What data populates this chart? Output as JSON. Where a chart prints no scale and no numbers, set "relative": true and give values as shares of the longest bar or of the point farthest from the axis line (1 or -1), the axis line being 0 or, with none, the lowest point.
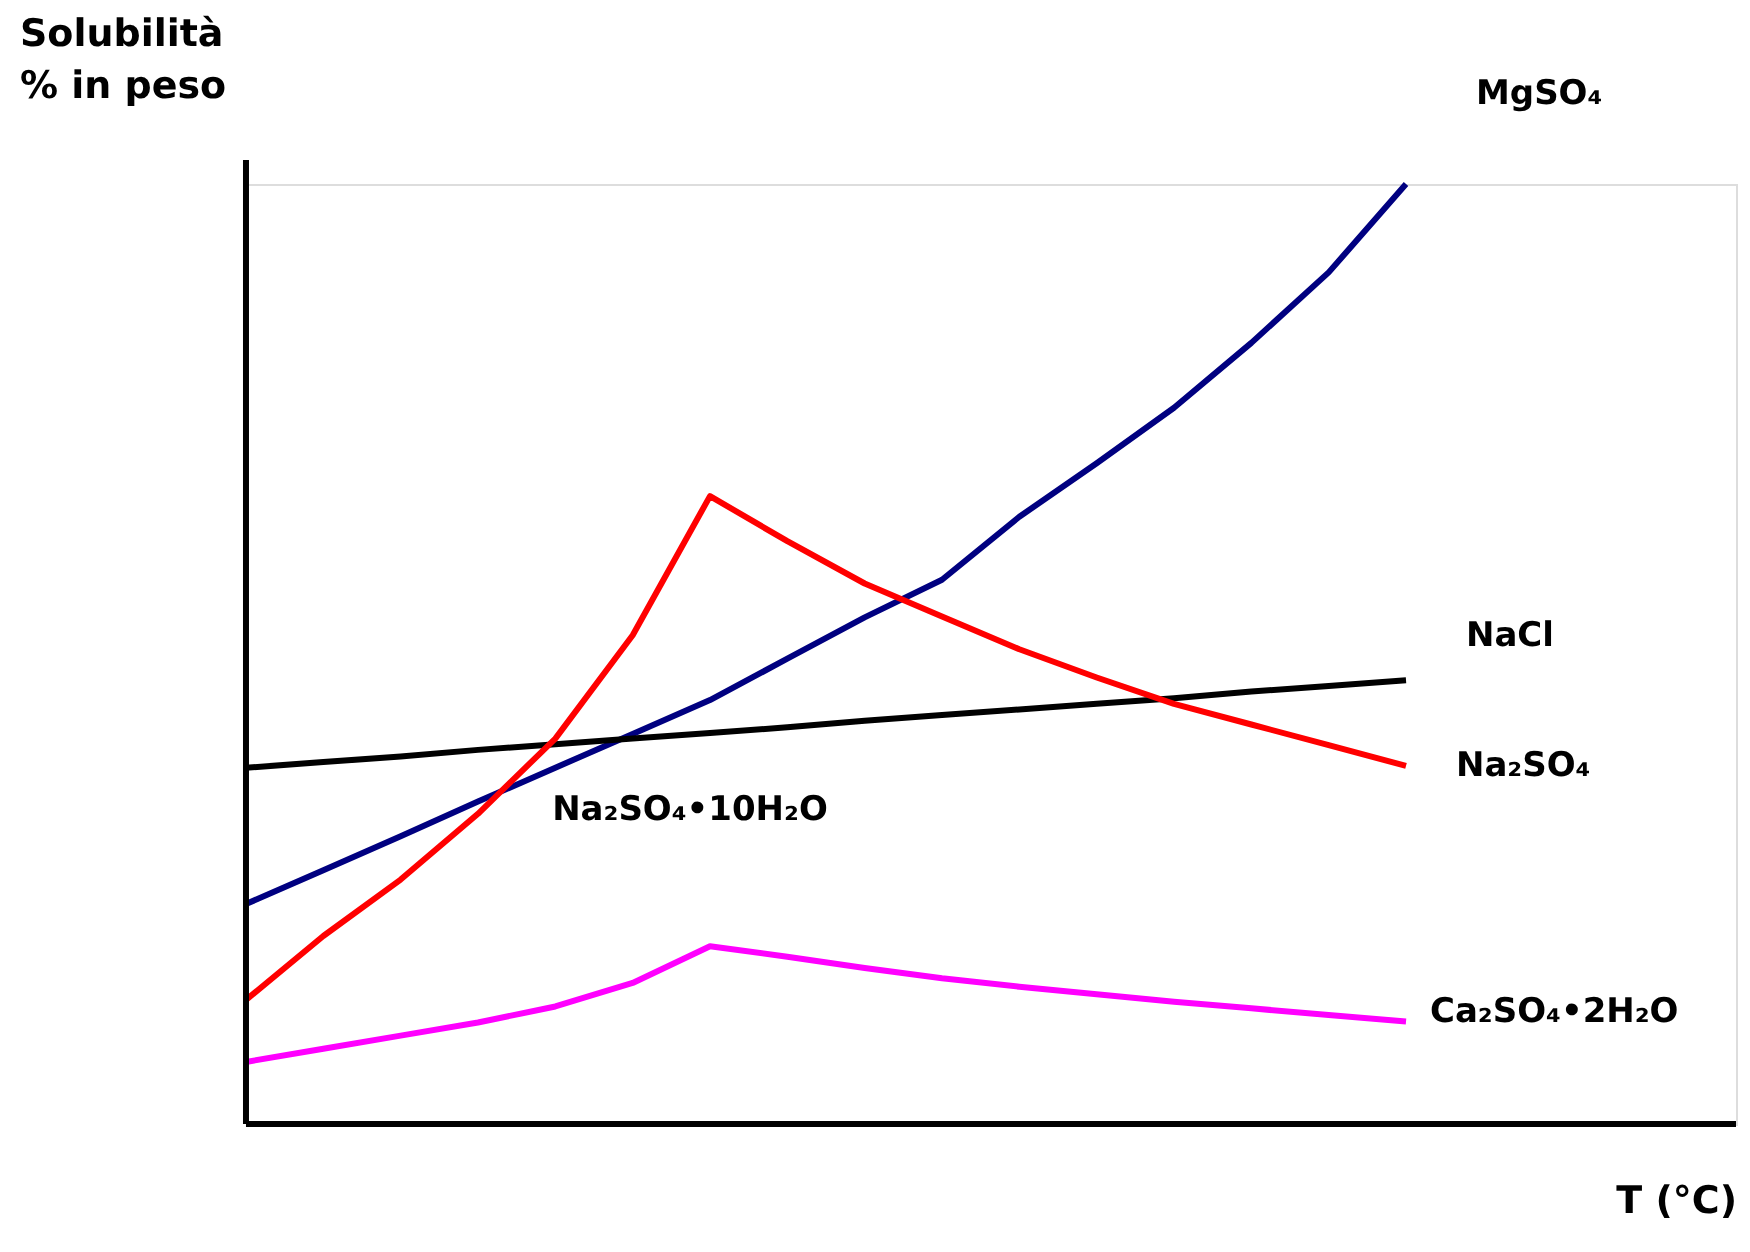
{
  "chart_data": {
    "type": "line",
    "relative": true,
    "xlabel": "T (°C)",
    "ylabel": "Solubilità\n% in peso",
    "legend": false,
    "marker": "none",
    "line_style": "solid",
    "categories": [
      null,
      null,
      null,
      null,
      null,
      null,
      null,
      null,
      null,
      null,
      null,
      null,
      null,
      null,
      null,
      null
    ],
    "series": [
      {
        "name": "MgSO₄",
        "color": "#000080",
        "values": [
          0.234,
          0.27,
          0.306,
          0.343,
          0.379,
          0.415,
          0.451,
          0.495,
          0.539,
          0.579,
          0.646,
          0.703,
          0.762,
          0.831,
          0.906,
          1.0
        ]
      },
      {
        "name": "NaCl",
        "color": "#000000",
        "values": [
          0.379,
          0.385,
          0.391,
          0.398,
          0.404,
          0.41,
          0.416,
          0.422,
          0.429,
          0.435,
          0.441,
          0.447,
          0.453,
          0.46,
          0.466,
          0.472
        ]
      },
      {
        "name": "Na₂SO₄",
        "color": "#ff0000",
        "values": [
          0.132,
          0.2,
          0.26,
          0.33,
          0.41,
          0.52,
          0.668,
          0.62,
          0.575,
          0.54,
          0.505,
          0.475,
          0.447,
          0.425,
          0.403,
          0.381
        ]
      },
      {
        "name": "Ca₂SO₄•2H₂O",
        "color": "#ff00ff",
        "values": [
          0.066,
          0.08,
          0.094,
          0.108,
          0.125,
          0.15,
          0.189,
          0.178,
          0.166,
          0.155,
          0.146,
          0.138,
          0.13,
          0.123,
          0.116,
          0.109
        ]
      }
    ],
    "annotations": [
      "Na₂SO₄•10H₂O"
    ]
  }
}
